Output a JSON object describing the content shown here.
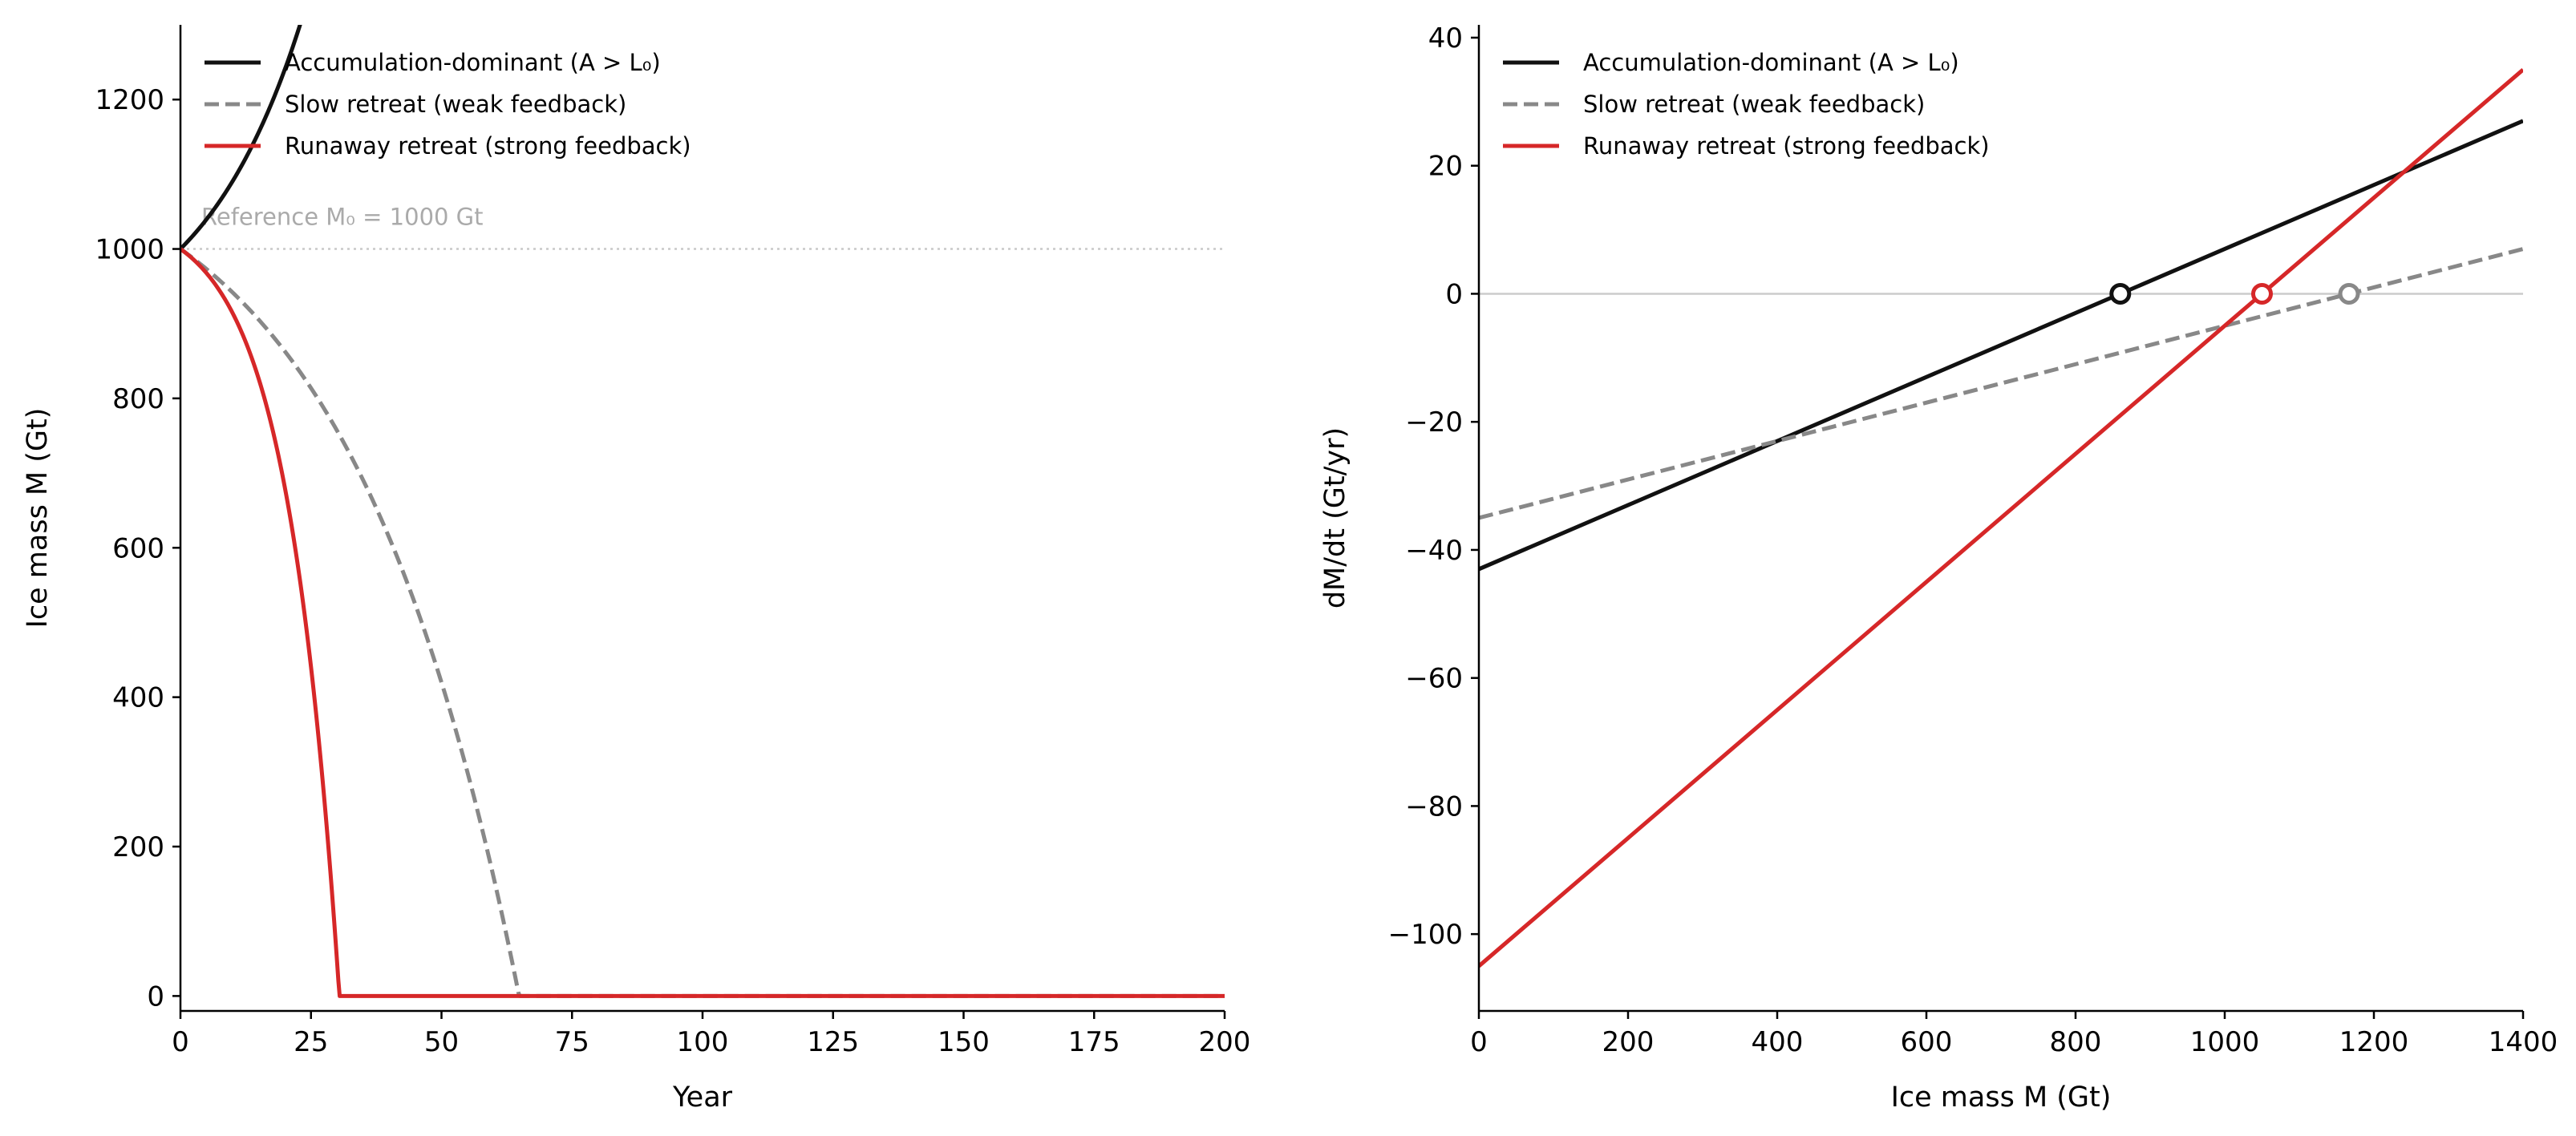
{
  "chart_data": [
    {
      "type": "line",
      "title": "",
      "xlabel": "Year",
      "ylabel": "Ice mass M (Gt)",
      "xlim": [
        0,
        200
      ],
      "ylim": [
        -20,
        1300
      ],
      "xticks": [
        0,
        25,
        50,
        75,
        100,
        125,
        150,
        175,
        200
      ],
      "yticks": [
        0,
        200,
        400,
        600,
        800,
        1000,
        1200
      ],
      "grid": false,
      "legend_position": "top-left",
      "reference": {
        "value": 1000,
        "label": "Reference M₀ = 1000 Gt",
        "color": "#c8c8c8"
      },
      "initial_mass": 1000,
      "series": [
        {
          "name": "Accumulation-dominant (A > L₀)",
          "color": "#111111",
          "dash": "solid",
          "slope": 0.05,
          "intercept": -43
        },
        {
          "name": "Slow retreat (weak feedback)",
          "color": "#888888",
          "dash": "dashed",
          "slope": 0.03,
          "intercept": -35
        },
        {
          "name": "Runaway retreat (strong feedback)",
          "color": "#d62728",
          "dash": "solid",
          "slope": 0.1,
          "intercept": -105
        }
      ]
    },
    {
      "type": "line",
      "title": "",
      "xlabel": "Ice mass M (Gt)",
      "ylabel": "dM/dt (Gt/yr)",
      "xlim": [
        0,
        1400
      ],
      "ylim": [
        -112,
        42
      ],
      "xticks": [
        0,
        200,
        400,
        600,
        800,
        1000,
        1200,
        1400
      ],
      "yticks": [
        -100,
        -80,
        -60,
        -40,
        -20,
        0,
        20,
        40
      ],
      "grid": false,
      "legend_position": "top-left",
      "zero_line_color": "#cccccc",
      "series": [
        {
          "name": "Accumulation-dominant (A > L₀)",
          "color": "#111111",
          "dash": "solid",
          "x": [
            0,
            1400
          ],
          "y": [
            -43,
            27
          ],
          "equilibrium": 860
        },
        {
          "name": "Slow retreat (weak feedback)",
          "color": "#888888",
          "dash": "dashed",
          "x": [
            0,
            1400
          ],
          "y": [
            -35,
            7
          ],
          "equilibrium": 1166.7
        },
        {
          "name": "Runaway retreat (strong feedback)",
          "color": "#d62728",
          "dash": "solid",
          "x": [
            0,
            1400
          ],
          "y": [
            -105,
            35
          ],
          "equilibrium": 1050
        }
      ]
    }
  ]
}
